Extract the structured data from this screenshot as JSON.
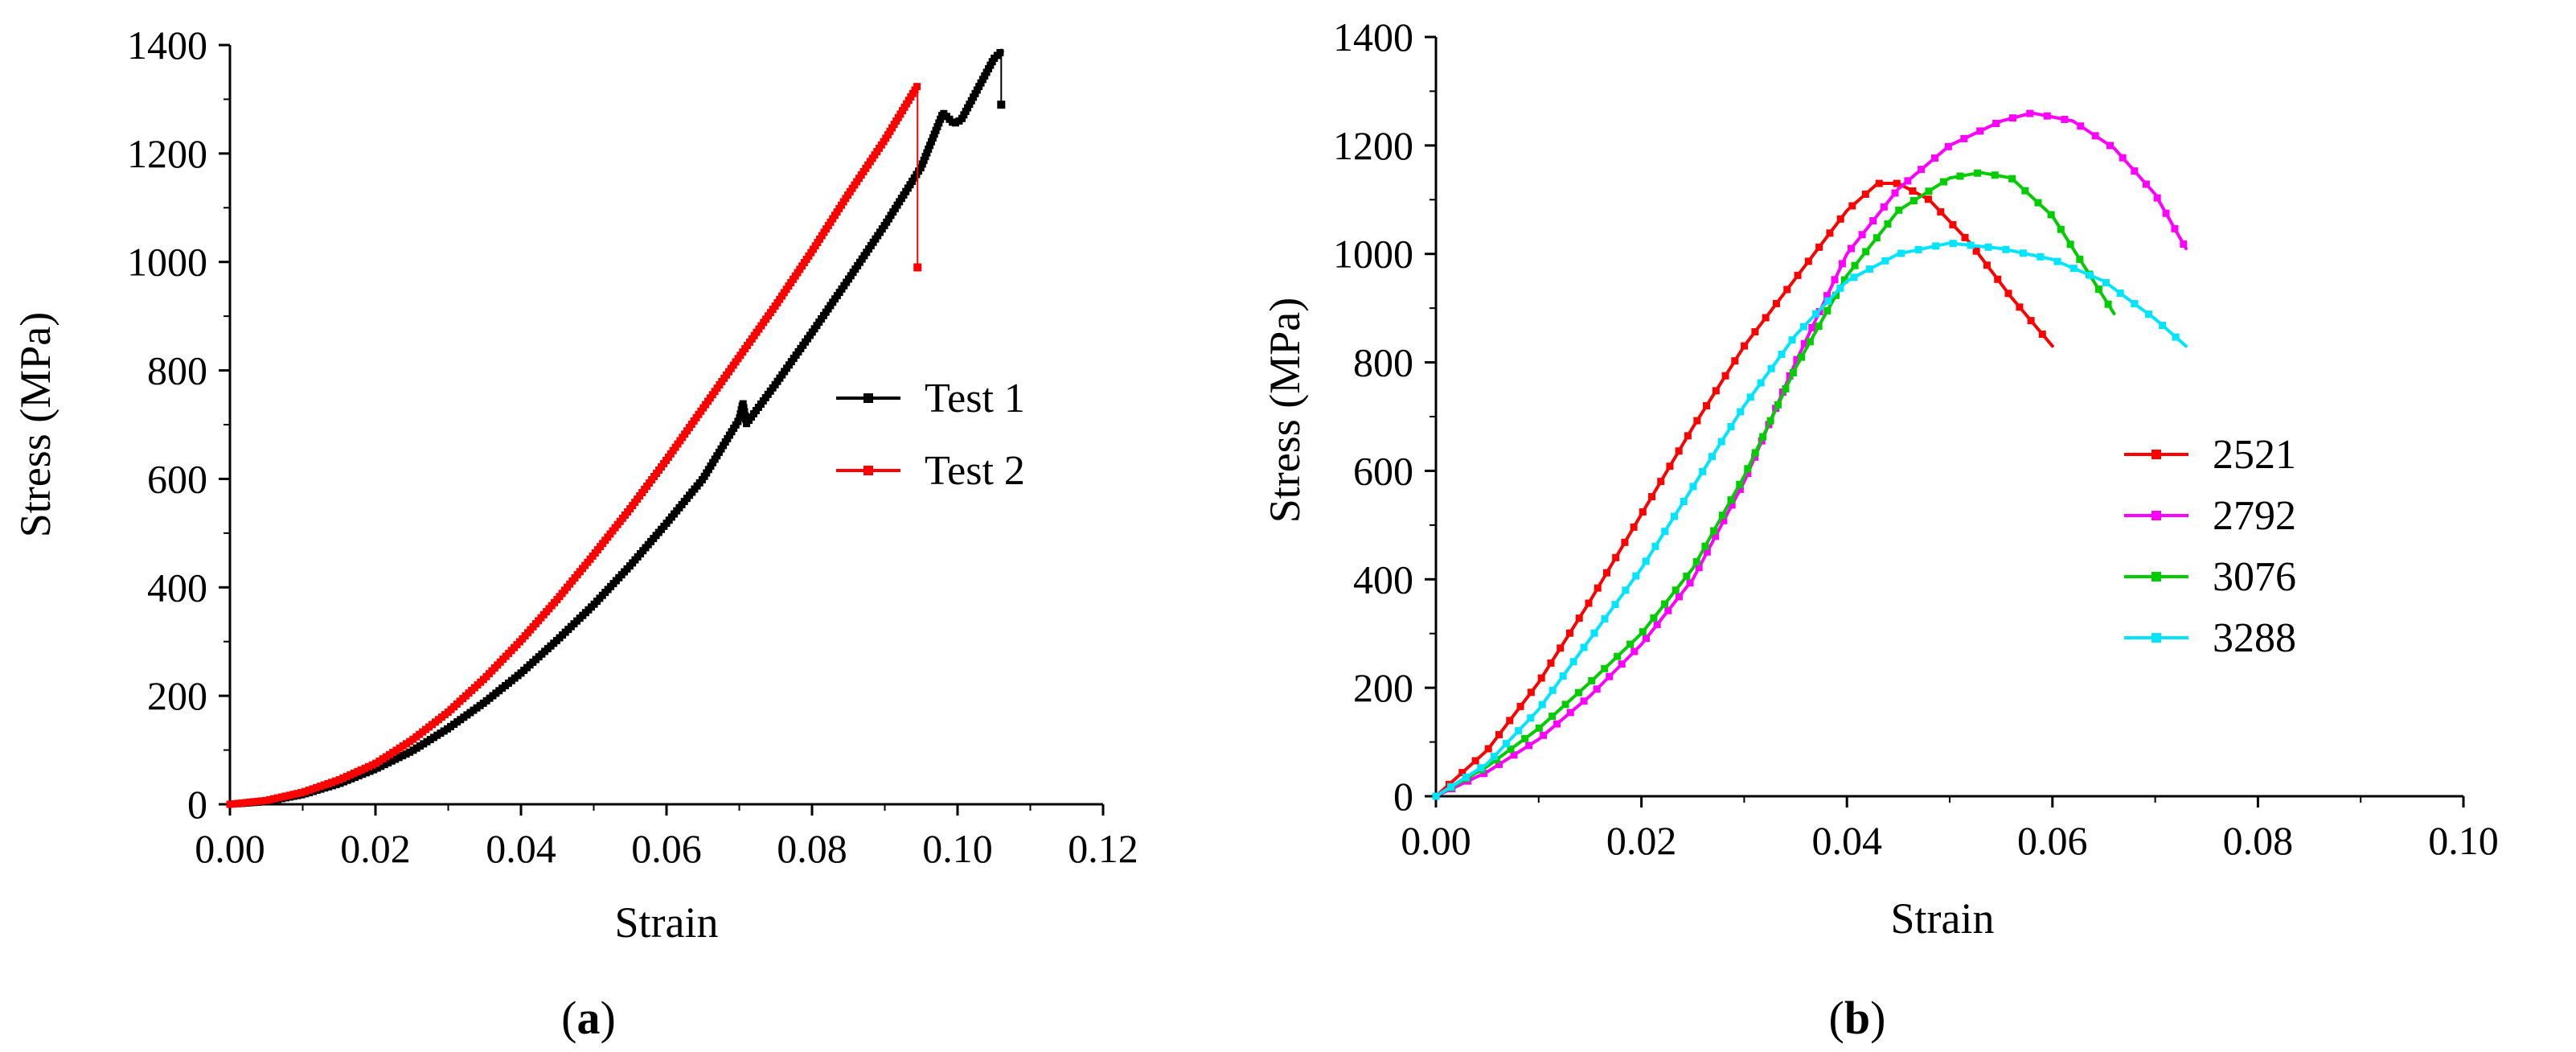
{
  "chart_data": [
    {
      "type": "line",
      "panel": "a",
      "panel_label": "a",
      "xlabel": "Strain",
      "ylabel": "Stress (MPa)",
      "xlim": [
        0,
        0.12
      ],
      "ylim": [
        0,
        1400
      ],
      "x_ticks": [
        0,
        0.02,
        0.04,
        0.06,
        0.08,
        0.1,
        0.12
      ],
      "x_tick_labels": [
        "0.00",
        "0.02",
        "0.04",
        "0.06",
        "0.08",
        "0.10",
        "0.12"
      ],
      "y_ticks": [
        0,
        200,
        400,
        600,
        800,
        1000,
        1200,
        1400
      ],
      "y_tick_labels": [
        "0",
        "200",
        "400",
        "600",
        "800",
        "1000",
        "1200",
        "1400"
      ],
      "legend_position": "center-right",
      "series": [
        {
          "name": "Test 1",
          "color": "#000000",
          "points": [
            [
              0,
              0
            ],
            [
              0.005,
              5
            ],
            [
              0.01,
              18
            ],
            [
              0.015,
              38
            ],
            [
              0.02,
              65
            ],
            [
              0.025,
              98
            ],
            [
              0.03,
              140
            ],
            [
              0.035,
              188
            ],
            [
              0.04,
              242
            ],
            [
              0.045,
              303
            ],
            [
              0.05,
              368
            ],
            [
              0.055,
              440
            ],
            [
              0.06,
              518
            ],
            [
              0.065,
              600
            ],
            [
              0.07,
              710
            ],
            [
              0.0705,
              740
            ],
            [
              0.071,
              702
            ],
            [
              0.075,
              775
            ],
            [
              0.08,
              870
            ],
            [
              0.085,
              968
            ],
            [
              0.09,
              1068
            ],
            [
              0.095,
              1175
            ],
            [
              0.098,
              1275
            ],
            [
              0.0995,
              1255
            ],
            [
              0.1005,
              1262
            ],
            [
              0.105,
              1375
            ],
            [
              0.106,
              1388
            ]
          ],
          "drop": [
            [
              0.106,
              1388
            ],
            [
              0.106,
              1290
            ]
          ]
        },
        {
          "name": "Test 2",
          "color": "#ff0000",
          "points": [
            [
              0,
              0
            ],
            [
              0.005,
              7
            ],
            [
              0.01,
              22
            ],
            [
              0.015,
              45
            ],
            [
              0.02,
              75
            ],
            [
              0.025,
              118
            ],
            [
              0.03,
              170
            ],
            [
              0.035,
              232
            ],
            [
              0.04,
              302
            ],
            [
              0.045,
              378
            ],
            [
              0.05,
              460
            ],
            [
              0.055,
              545
            ],
            [
              0.06,
              635
            ],
            [
              0.065,
              730
            ],
            [
              0.07,
              825
            ],
            [
              0.075,
              920
            ],
            [
              0.08,
              1020
            ],
            [
              0.085,
              1125
            ],
            [
              0.09,
              1225
            ],
            [
              0.0945,
              1325
            ]
          ],
          "drop": [
            [
              0.0945,
              1325
            ],
            [
              0.0945,
              990
            ]
          ]
        }
      ]
    },
    {
      "type": "line",
      "panel": "b",
      "panel_label": "b",
      "xlabel": "Strain",
      "ylabel": "Stress (MPa)",
      "xlim": [
        0,
        0.1
      ],
      "ylim": [
        0,
        1400
      ],
      "x_ticks": [
        0,
        0.02,
        0.04,
        0.06,
        0.08,
        0.1
      ],
      "x_tick_labels": [
        "0.00",
        "0.02",
        "0.04",
        "0.06",
        "0.08",
        "0.10"
      ],
      "y_ticks": [
        0,
        200,
        400,
        600,
        800,
        1000,
        1200,
        1400
      ],
      "y_tick_labels": [
        "0",
        "200",
        "400",
        "600",
        "800",
        "1000",
        "1200",
        "1400"
      ],
      "legend_position": "right",
      "series": [
        {
          "name": "2521",
          "color": "#ff0000",
          "points": [
            [
              0,
              0
            ],
            [
              0.005,
              85
            ],
            [
              0.01,
              210
            ],
            [
              0.015,
              360
            ],
            [
              0.02,
              520
            ],
            [
              0.025,
              680
            ],
            [
              0.03,
              830
            ],
            [
              0.035,
              955
            ],
            [
              0.04,
              1080
            ],
            [
              0.043,
              1130
            ],
            [
              0.045,
              1130
            ],
            [
              0.048,
              1100
            ],
            [
              0.052,
              1020
            ],
            [
              0.056,
              920
            ],
            [
              0.06,
              830
            ]
          ]
        },
        {
          "name": "2792",
          "color": "#ff00ff",
          "points": [
            [
              0,
              0
            ],
            [
              0.005,
              45
            ],
            [
              0.01,
              105
            ],
            [
              0.015,
              185
            ],
            [
              0.02,
              280
            ],
            [
              0.025,
              400
            ],
            [
              0.03,
              580
            ],
            [
              0.035,
              800
            ],
            [
              0.04,
              1000
            ],
            [
              0.045,
              1120
            ],
            [
              0.05,
              1200
            ],
            [
              0.055,
              1245
            ],
            [
              0.058,
              1260
            ],
            [
              0.062,
              1245
            ],
            [
              0.066,
              1195
            ],
            [
              0.07,
              1110
            ],
            [
              0.073,
              1010
            ]
          ]
        },
        {
          "name": "3076",
          "color": "#00cc00",
          "points": [
            [
              0,
              0
            ],
            [
              0.005,
              55
            ],
            [
              0.01,
              125
            ],
            [
              0.015,
              210
            ],
            [
              0.02,
              300
            ],
            [
              0.025,
              420
            ],
            [
              0.03,
              590
            ],
            [
              0.035,
              790
            ],
            [
              0.04,
              960
            ],
            [
              0.045,
              1080
            ],
            [
              0.05,
              1140
            ],
            [
              0.053,
              1150
            ],
            [
              0.056,
              1140
            ],
            [
              0.06,
              1070
            ],
            [
              0.063,
              980
            ],
            [
              0.066,
              890
            ]
          ]
        },
        {
          "name": "3288",
          "color": "#00e5ff",
          "points": [
            [
              0,
              0
            ],
            [
              0.005,
              60
            ],
            [
              0.01,
              160
            ],
            [
              0.015,
              290
            ],
            [
              0.02,
              420
            ],
            [
              0.025,
              570
            ],
            [
              0.03,
              720
            ],
            [
              0.035,
              850
            ],
            [
              0.04,
              950
            ],
            [
              0.045,
              1000
            ],
            [
              0.05,
              1020
            ],
            [
              0.055,
              1010
            ],
            [
              0.06,
              990
            ],
            [
              0.065,
              950
            ],
            [
              0.07,
              880
            ],
            [
              0.073,
              830
            ]
          ]
        }
      ]
    }
  ]
}
